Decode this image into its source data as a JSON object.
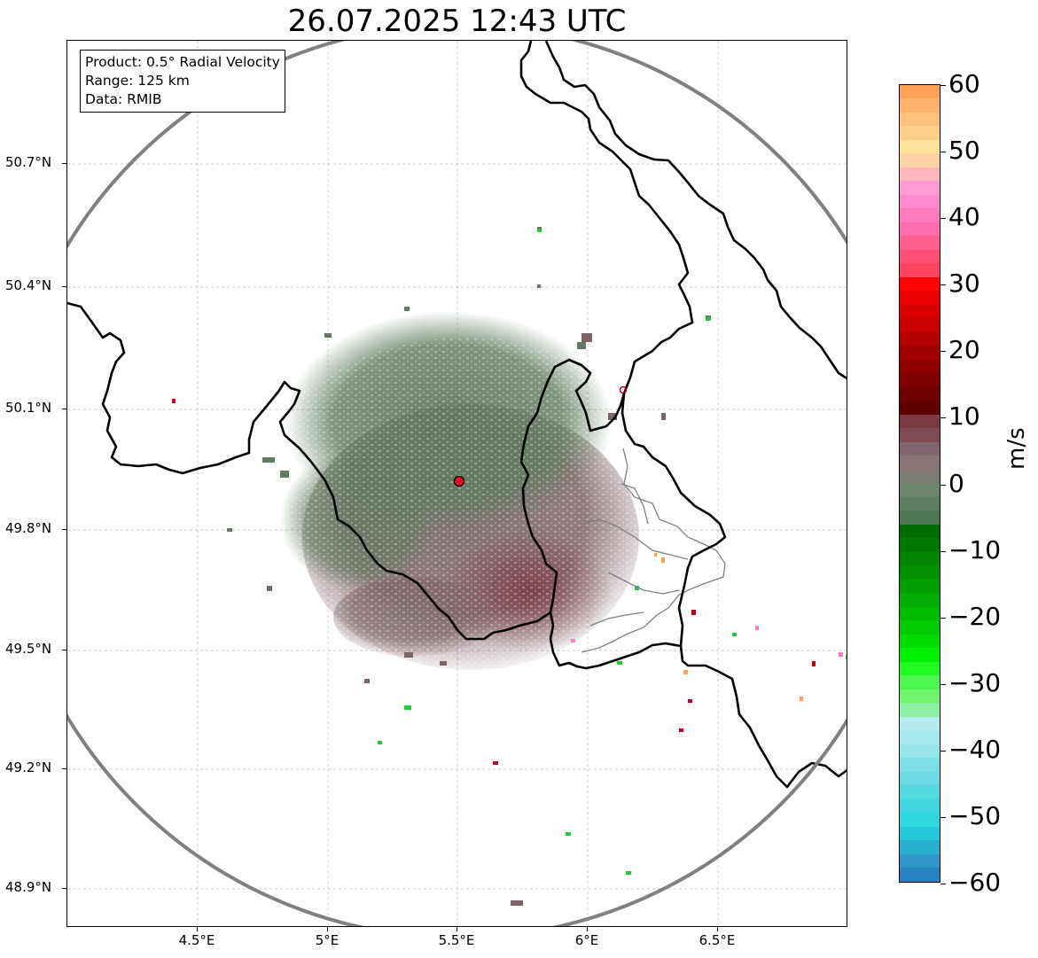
{
  "title": "26.07.2025 12:43 UTC",
  "info": {
    "product": "Product: 0.5° Radial Velocity",
    "range": "Range: 125 km",
    "source": "Data: RMIB"
  },
  "map": {
    "lon_ticks": [
      "4.5°E",
      "5°E",
      "5.5°E",
      "6°E",
      "6.5°E"
    ],
    "lat_ticks": [
      "50.7°N",
      "50.4°N",
      "50.1°N",
      "49.8°N",
      "49.5°N",
      "49.2°N",
      "48.9°N"
    ],
    "radar_site_color": "#e0101a",
    "range_ring_color": "#808080",
    "border_color": "#000000",
    "admin_border_color": "#808080"
  },
  "colorbar": {
    "unit": "m/s",
    "labels": [
      "60",
      "50",
      "40",
      "30",
      "20",
      "10",
      "0",
      "−10",
      "−20",
      "−30",
      "−40",
      "−50",
      "−60"
    ],
    "min": -60,
    "max": 60,
    "colors": [
      "#ffa25a",
      "#ffb36c",
      "#ffc27e",
      "#ffcf8c",
      "#ffe39a",
      "#ffd3a8",
      "#ffb7be",
      "#ff9cd4",
      "#ff8ad0",
      "#ff7cc0",
      "#ff6eab",
      "#ff6090",
      "#ff4f72",
      "#ff4460",
      "#ff0000",
      "#eb0000",
      "#d80000",
      "#c70000",
      "#b40000",
      "#a20000",
      "#900000",
      "#7f0000",
      "#700000",
      "#600000",
      "#7a3a44",
      "#7f4a55",
      "#836570",
      "#8a7377",
      "#7c7b72",
      "#6a8569",
      "#5d7f5f",
      "#4e7650",
      "#006b00",
      "#007800",
      "#008500",
      "#009000",
      "#009e00",
      "#00ad00",
      "#00bb00",
      "#00cb00",
      "#00dc00",
      "#00ee00",
      "#22fb22",
      "#4ff54f",
      "#6ef56e",
      "#8ff0a4",
      "#b5ecf0",
      "#a6e8ee",
      "#94e4ea",
      "#7fdfe6",
      "#6adbe2",
      "#55d8e0",
      "#3fd6df",
      "#2fd8df",
      "#27c8d8",
      "#2aaed0",
      "#2f96c8",
      "#2a82c2"
    ]
  }
}
